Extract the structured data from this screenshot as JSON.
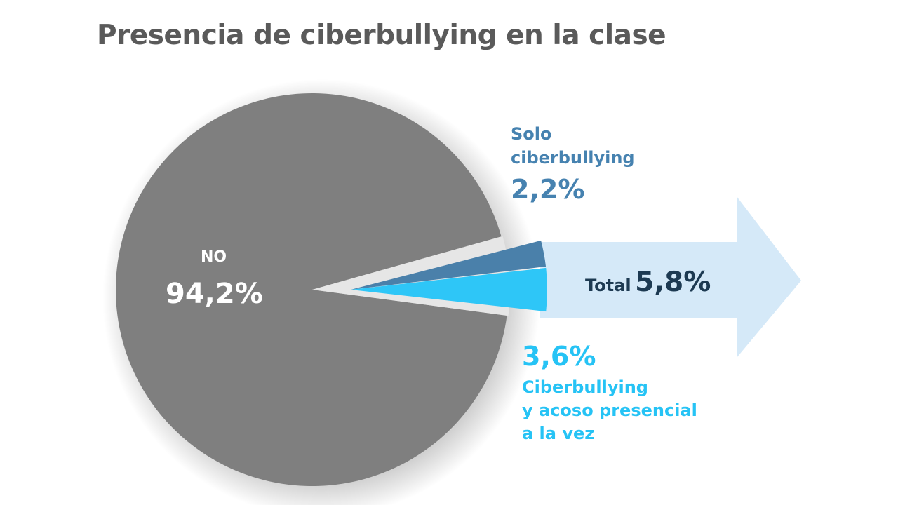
{
  "chart_data": {
    "type": "pie",
    "title": "Presencia de ciberbullying en la clase",
    "slices": [
      {
        "name": "NO",
        "value": 94.2,
        "label": "94,2%",
        "color": "#7f7f7f"
      },
      {
        "name": "Solo\nciberbullying",
        "value": 2.2,
        "label": "2,2%",
        "color": "#4a80aa"
      },
      {
        "name": "Ciberbullying\ny acoso presencial\na la vez",
        "value": 3.6,
        "label": "3,6%",
        "color": "#2ec6f7"
      }
    ],
    "total": {
      "label": "Total",
      "value": 5.8,
      "display": "5,8%"
    },
    "arrow_color": "#d5e9f8"
  }
}
